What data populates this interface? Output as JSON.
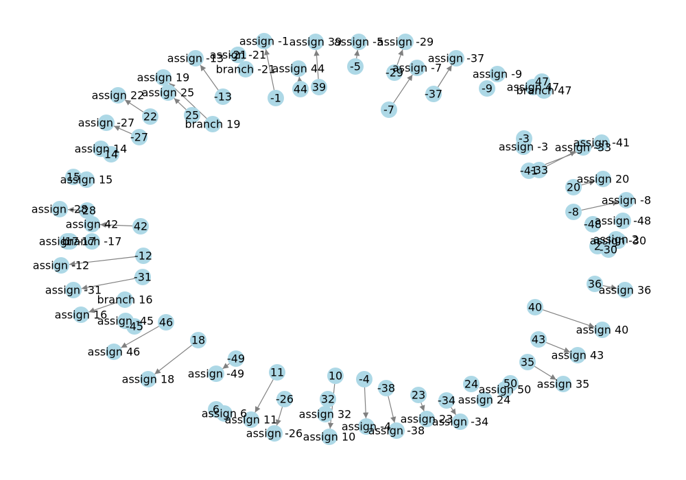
{
  "colors": {
    "node": "#add8e6",
    "edge": "#808080",
    "label": "#000000",
    "background": "#ffffff"
  },
  "nodes": [
    {
      "id": "-1",
      "label": "-1"
    },
    {
      "id": "assign -1",
      "label": "assign -1"
    },
    {
      "id": "-21",
      "label": "-21"
    },
    {
      "id": "assign -21",
      "label": "assign -21"
    },
    {
      "id": "branch -21",
      "label": "branch -21"
    },
    {
      "id": "39",
      "label": "39"
    },
    {
      "id": "assign 39",
      "label": "assign 39"
    },
    {
      "id": "-5",
      "label": "-5"
    },
    {
      "id": "assign -5",
      "label": "assign -5"
    },
    {
      "id": "-29",
      "label": "-29"
    },
    {
      "id": "assign -29",
      "label": "assign -29"
    },
    {
      "id": "-13",
      "label": "-13"
    },
    {
      "id": "assign -13",
      "label": "assign -13"
    },
    {
      "id": "44",
      "label": "44"
    },
    {
      "id": "assign 44",
      "label": "assign 44"
    },
    {
      "id": "-7",
      "label": "-7"
    },
    {
      "id": "assign -7",
      "label": "assign -7"
    },
    {
      "id": "-37",
      "label": "-37"
    },
    {
      "id": "assign -37",
      "label": "assign -37"
    },
    {
      "id": "branch 19",
      "label": "branch 19"
    },
    {
      "id": "assign 19",
      "label": "assign 19"
    },
    {
      "id": "25",
      "label": "25"
    },
    {
      "id": "assign 25",
      "label": "assign 25"
    },
    {
      "id": "22",
      "label": "22"
    },
    {
      "id": "assign 22",
      "label": "assign 22"
    },
    {
      "id": "-9",
      "label": "-9"
    },
    {
      "id": "assign -9",
      "label": "assign -9"
    },
    {
      "id": "47",
      "label": "47"
    },
    {
      "id": "assign 47",
      "label": "assign 47"
    },
    {
      "id": "branch 47",
      "label": "branch 47"
    },
    {
      "id": "-27",
      "label": "-27"
    },
    {
      "id": "assign -27",
      "label": "assign -27"
    },
    {
      "id": "14",
      "label": "14"
    },
    {
      "id": "assign 14",
      "label": "assign 14"
    },
    {
      "id": "-3",
      "label": "-3"
    },
    {
      "id": "assign -3",
      "label": "assign -3"
    },
    {
      "id": "-41",
      "label": "-41"
    },
    {
      "id": "assign -41",
      "label": "assign -41"
    },
    {
      "id": "-33",
      "label": "-33"
    },
    {
      "id": "assign -33",
      "label": "assign -33"
    },
    {
      "id": "15",
      "label": "15"
    },
    {
      "id": "assign 15",
      "label": "assign 15"
    },
    {
      "id": "20",
      "label": "20"
    },
    {
      "id": "assign 20",
      "label": "assign 20"
    },
    {
      "id": "-8",
      "label": "-8"
    },
    {
      "id": "assign -8",
      "label": "assign -8"
    },
    {
      "id": "-28",
      "label": "-28"
    },
    {
      "id": "assign -28",
      "label": "assign -28"
    },
    {
      "id": "42",
      "label": "42"
    },
    {
      "id": "assign 42",
      "label": "assign 42"
    },
    {
      "id": "-48",
      "label": "-48"
    },
    {
      "id": "assign -48",
      "label": "assign -48"
    },
    {
      "id": "2",
      "label": "2"
    },
    {
      "id": "assign 2",
      "label": "assign 2"
    },
    {
      "id": "-30",
      "label": "-30"
    },
    {
      "id": "assign -30",
      "label": "assign -30"
    },
    {
      "id": "-17",
      "label": "-17"
    },
    {
      "id": "assign -17",
      "label": "assign -17"
    },
    {
      "id": "branch -17",
      "label": "branch -17"
    },
    {
      "id": "-12",
      "label": "-12"
    },
    {
      "id": "assign -12",
      "label": "assign -12"
    },
    {
      "id": "36",
      "label": "36"
    },
    {
      "id": "assign 36",
      "label": "assign 36"
    },
    {
      "id": "-31",
      "label": "-31"
    },
    {
      "id": "assign -31",
      "label": "assign -31"
    },
    {
      "id": "branch 16",
      "label": "branch 16"
    },
    {
      "id": "assign 16",
      "label": "assign 16"
    },
    {
      "id": "-45",
      "label": "-45"
    },
    {
      "id": "assign -45",
      "label": "assign -45"
    },
    {
      "id": "46",
      "label": "46"
    },
    {
      "id": "assign 46",
      "label": "assign 46"
    },
    {
      "id": "40",
      "label": "40"
    },
    {
      "id": "assign 40",
      "label": "assign 40"
    },
    {
      "id": "43",
      "label": "43"
    },
    {
      "id": "assign 43",
      "label": "assign 43"
    },
    {
      "id": "18",
      "label": "18"
    },
    {
      "id": "assign 18",
      "label": "assign 18"
    },
    {
      "id": "35",
      "label": "35"
    },
    {
      "id": "assign 35",
      "label": "assign 35"
    },
    {
      "id": "-49",
      "label": "-49"
    },
    {
      "id": "assign -49",
      "label": "assign -49"
    },
    {
      "id": "50",
      "label": "50"
    },
    {
      "id": "assign 50",
      "label": "assign 50"
    },
    {
      "id": "24",
      "label": "24"
    },
    {
      "id": "assign 24",
      "label": "assign 24"
    },
    {
      "id": "11",
      "label": "11"
    },
    {
      "id": "assign 11",
      "label": "assign 11"
    },
    {
      "id": "10",
      "label": "10"
    },
    {
      "id": "assign 10",
      "label": "assign 10"
    },
    {
      "id": "-4",
      "label": "-4"
    },
    {
      "id": "assign -4",
      "label": "assign -4"
    },
    {
      "id": "-38",
      "label": "-38"
    },
    {
      "id": "assign -38",
      "label": "assign -38"
    },
    {
      "id": "23",
      "label": "23"
    },
    {
      "id": "assign 23",
      "label": "assign 23"
    },
    {
      "id": "-34",
      "label": "-34"
    },
    {
      "id": "assign -34",
      "label": "assign -34"
    },
    {
      "id": "-26",
      "label": "-26"
    },
    {
      "id": "assign -26",
      "label": "assign -26"
    },
    {
      "id": "32",
      "label": "32"
    },
    {
      "id": "assign 32",
      "label": "assign 32"
    },
    {
      "id": "6",
      "label": "6"
    },
    {
      "id": "assign 6",
      "label": "assign 6"
    }
  ],
  "edges": [
    {
      "source": "-1",
      "target": "assign -1"
    },
    {
      "source": "39",
      "target": "assign 39"
    },
    {
      "source": "-5",
      "target": "assign -5"
    },
    {
      "source": "-29",
      "target": "assign -29"
    },
    {
      "source": "-13",
      "target": "assign -13"
    },
    {
      "source": "44",
      "target": "assign 44"
    },
    {
      "source": "-7",
      "target": "assign -7"
    },
    {
      "source": "-37",
      "target": "assign -37"
    },
    {
      "source": "branch 19",
      "target": "assign 19"
    },
    {
      "source": "25",
      "target": "assign 25"
    },
    {
      "source": "22",
      "target": "assign 22"
    },
    {
      "source": "-27",
      "target": "assign -27"
    },
    {
      "source": "-41",
      "target": "assign -41"
    },
    {
      "source": "-33",
      "target": "assign -33"
    },
    {
      "source": "20",
      "target": "assign 20"
    },
    {
      "source": "-8",
      "target": "assign -8"
    },
    {
      "source": "-28",
      "target": "assign -28"
    },
    {
      "source": "42",
      "target": "assign 42"
    },
    {
      "source": "-12",
      "target": "assign -12"
    },
    {
      "source": "36",
      "target": "assign 36"
    },
    {
      "source": "-31",
      "target": "assign -31"
    },
    {
      "source": "branch 16",
      "target": "assign 16"
    },
    {
      "source": "46",
      "target": "assign 46"
    },
    {
      "source": "40",
      "target": "assign 40"
    },
    {
      "source": "43",
      "target": "assign 43"
    },
    {
      "source": "18",
      "target": "assign 18"
    },
    {
      "source": "35",
      "target": "assign 35"
    },
    {
      "source": "-49",
      "target": "assign -49"
    },
    {
      "source": "11",
      "target": "assign 11"
    },
    {
      "source": "10",
      "target": "assign 10"
    },
    {
      "source": "-4",
      "target": "assign -4"
    },
    {
      "source": "-38",
      "target": "assign -38"
    },
    {
      "source": "23",
      "target": "assign 23"
    },
    {
      "source": "-34",
      "target": "assign -34"
    },
    {
      "source": "-26",
      "target": "assign -26"
    }
  ]
}
